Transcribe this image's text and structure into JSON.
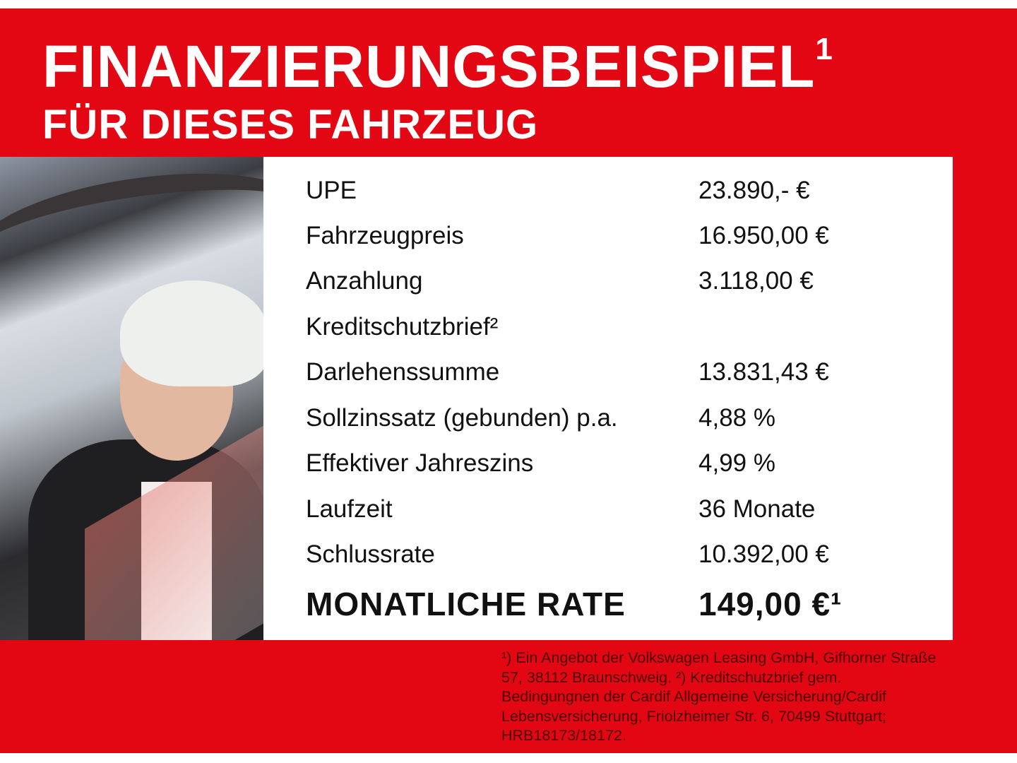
{
  "header": {
    "title": "FINANZIERUNGSBEISPIEL",
    "title_sup": "1",
    "subtitle": "FÜR DIESES FAHRZEUG"
  },
  "colors": {
    "background": "#e30613",
    "panel": "#ffffff",
    "heading_text": "#ffffff",
    "footnote_text": "#4a0000"
  },
  "photo": {
    "subject": "smiling woman with short blond hair in car"
  },
  "rows": [
    {
      "label": "UPE",
      "value": "23.890,- €"
    },
    {
      "label": "Fahrzeugpreis",
      "value": "16.950,00 €"
    },
    {
      "label": "Anzahlung",
      "value": "3.118,00 €"
    },
    {
      "label": "Kreditschutzbrief²",
      "value": ""
    },
    {
      "label": "Darlehenssumme",
      "value": "13.831,43 €"
    },
    {
      "label": "Sollzinssatz (gebunden) p.a.",
      "value": "4,88 %"
    },
    {
      "label": "Effektiver Jahreszins",
      "value": "4,99 %"
    },
    {
      "label": "Laufzeit",
      "value": "36 Monate"
    },
    {
      "label": "Schlussrate",
      "value": "10.392,00 €"
    }
  ],
  "total": {
    "label": "MONATLICHE RATE",
    "value": "149,00 €¹"
  },
  "footnote": "¹) Ein Angebot der Volkswagen Leasing GmbH, Gifhorner Straße 57, 38112 Braunschweig. ²) Kreditschutzbrief gem. Bedingungnen der Cardif Allgemeine Versicherung/Cardif Lebensversicherung, Friolzheimer Str. 6, 70499 Stuttgart; HRB18173/18172."
}
